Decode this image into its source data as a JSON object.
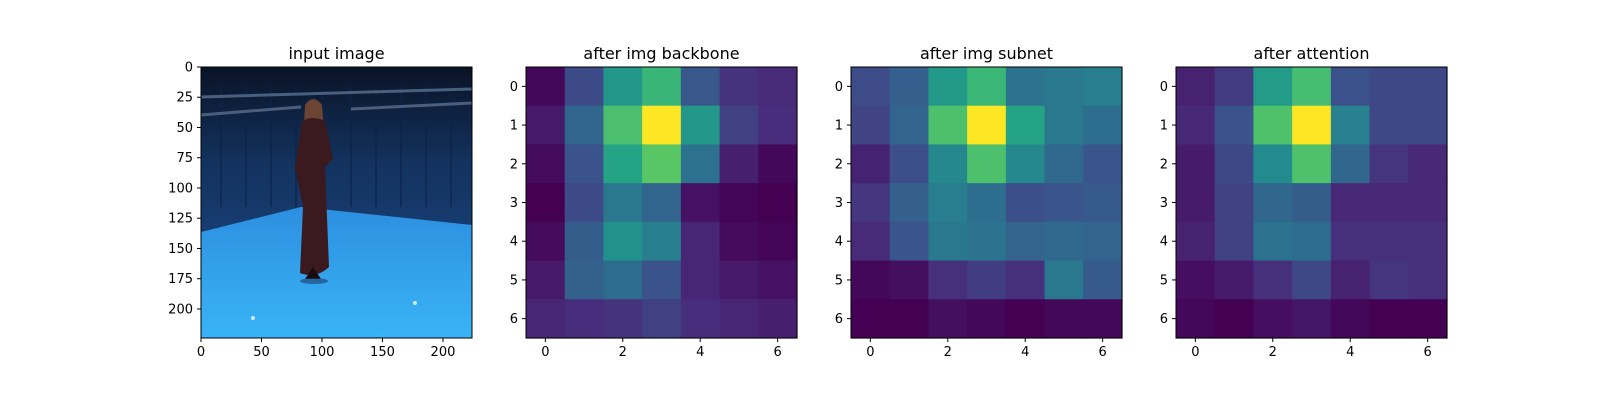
{
  "chart_data": [
    {
      "type": "image",
      "title": "input image",
      "xticks": [
        0,
        50,
        100,
        150,
        200
      ],
      "yticks": [
        0,
        25,
        50,
        75,
        100,
        125,
        150,
        175,
        200
      ],
      "xlim": [
        0,
        224
      ],
      "ylim": [
        224,
        0
      ],
      "scene": "person standing in blue motion-capture studio"
    },
    {
      "type": "heatmap",
      "title": "after img backbone",
      "colormap": "viridis",
      "xticks": [
        0,
        2,
        4,
        6
      ],
      "yticks": [
        0,
        1,
        2,
        3,
        4,
        5,
        6
      ],
      "values": [
        [
          0.05,
          0.25,
          0.55,
          0.68,
          0.3,
          0.18,
          0.15
        ],
        [
          0.1,
          0.35,
          0.72,
          1.0,
          0.55,
          0.22,
          0.16
        ],
        [
          0.06,
          0.28,
          0.6,
          0.75,
          0.4,
          0.12,
          0.05
        ],
        [
          0.03,
          0.25,
          0.42,
          0.35,
          0.08,
          0.04,
          0.03
        ],
        [
          0.06,
          0.32,
          0.52,
          0.45,
          0.14,
          0.06,
          0.04
        ],
        [
          0.1,
          0.33,
          0.38,
          0.28,
          0.14,
          0.1,
          0.08
        ],
        [
          0.14,
          0.16,
          0.18,
          0.22,
          0.16,
          0.14,
          0.12
        ]
      ]
    },
    {
      "type": "heatmap",
      "title": "after img subnet",
      "colormap": "viridis",
      "xticks": [
        0,
        2,
        4,
        6
      ],
      "yticks": [
        0,
        1,
        2,
        3,
        4,
        5,
        6
      ],
      "values": [
        [
          0.25,
          0.32,
          0.55,
          0.68,
          0.4,
          0.42,
          0.44
        ],
        [
          0.22,
          0.34,
          0.72,
          1.0,
          0.6,
          0.42,
          0.38
        ],
        [
          0.12,
          0.26,
          0.48,
          0.72,
          0.48,
          0.36,
          0.28
        ],
        [
          0.18,
          0.32,
          0.44,
          0.38,
          0.26,
          0.28,
          0.3
        ],
        [
          0.14,
          0.28,
          0.42,
          0.4,
          0.34,
          0.36,
          0.34
        ],
        [
          0.04,
          0.06,
          0.16,
          0.2,
          0.16,
          0.42,
          0.3
        ],
        [
          0.02,
          0.02,
          0.06,
          0.04,
          0.02,
          0.04,
          0.04
        ]
      ]
    },
    {
      "type": "heatmap",
      "title": "after attention",
      "colormap": "viridis",
      "xticks": [
        0,
        2,
        4,
        6
      ],
      "yticks": [
        0,
        1,
        2,
        3,
        4,
        5,
        6
      ],
      "values": [
        [
          0.1,
          0.18,
          0.55,
          0.7,
          0.25,
          0.22,
          0.22
        ],
        [
          0.12,
          0.26,
          0.72,
          1.0,
          0.44,
          0.22,
          0.22
        ],
        [
          0.08,
          0.22,
          0.48,
          0.72,
          0.34,
          0.16,
          0.12
        ],
        [
          0.08,
          0.2,
          0.34,
          0.3,
          0.12,
          0.12,
          0.12
        ],
        [
          0.1,
          0.2,
          0.38,
          0.36,
          0.14,
          0.14,
          0.14
        ],
        [
          0.04,
          0.08,
          0.14,
          0.22,
          0.1,
          0.16,
          0.14
        ],
        [
          0.02,
          0.0,
          0.04,
          0.06,
          0.02,
          0.0,
          0.0
        ]
      ]
    }
  ]
}
